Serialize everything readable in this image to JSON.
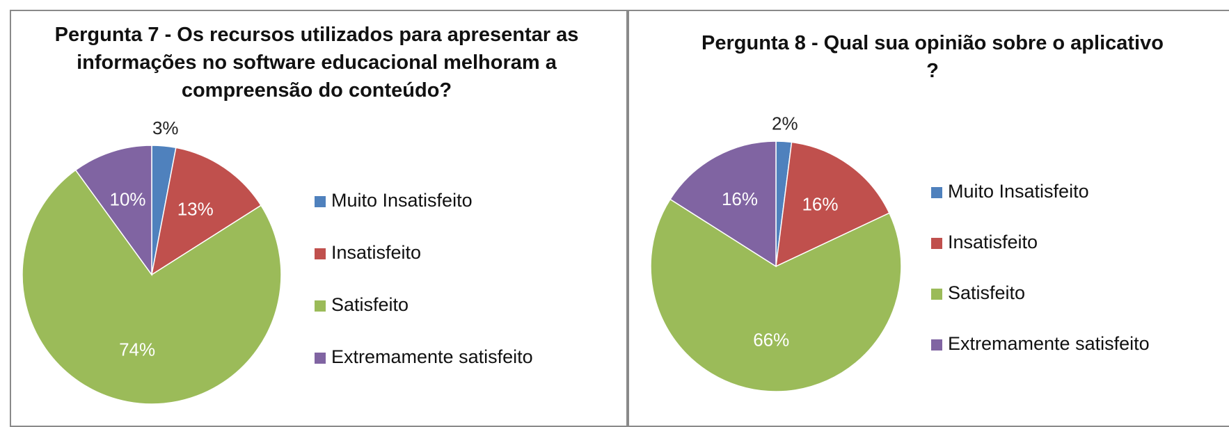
{
  "chart_data": [
    {
      "type": "pie",
      "title": "Pergunta 7 - Os recursos utilizados para apresentar as informações no software educacional melhoram a compreensão do conteúdo?",
      "categories": [
        "Muito Insatisfeito",
        "Insatisfeito",
        "Satisfeito",
        "Extremamente satisfeito"
      ],
      "values": [
        3,
        13,
        74,
        10
      ],
      "value_labels": [
        "3%",
        "13%",
        "74%",
        "10%"
      ],
      "colors": [
        "#4f81bd",
        "#c0504d",
        "#9bbb59",
        "#8064a2"
      ],
      "legend": "right"
    },
    {
      "type": "pie",
      "title": "Pergunta 8 - Qual sua opinião sobre o aplicativo ?",
      "categories": [
        "Muito Insatisfeito",
        "Insatisfeito",
        "Satisfeito",
        "Extremamente satisfeito"
      ],
      "values": [
        2,
        16,
        66,
        16
      ],
      "value_labels": [
        "2%",
        "16%",
        "66%",
        "16%"
      ],
      "colors": [
        "#4f81bd",
        "#c0504d",
        "#9bbb59",
        "#8064a2"
      ],
      "legend": "right"
    }
  ]
}
